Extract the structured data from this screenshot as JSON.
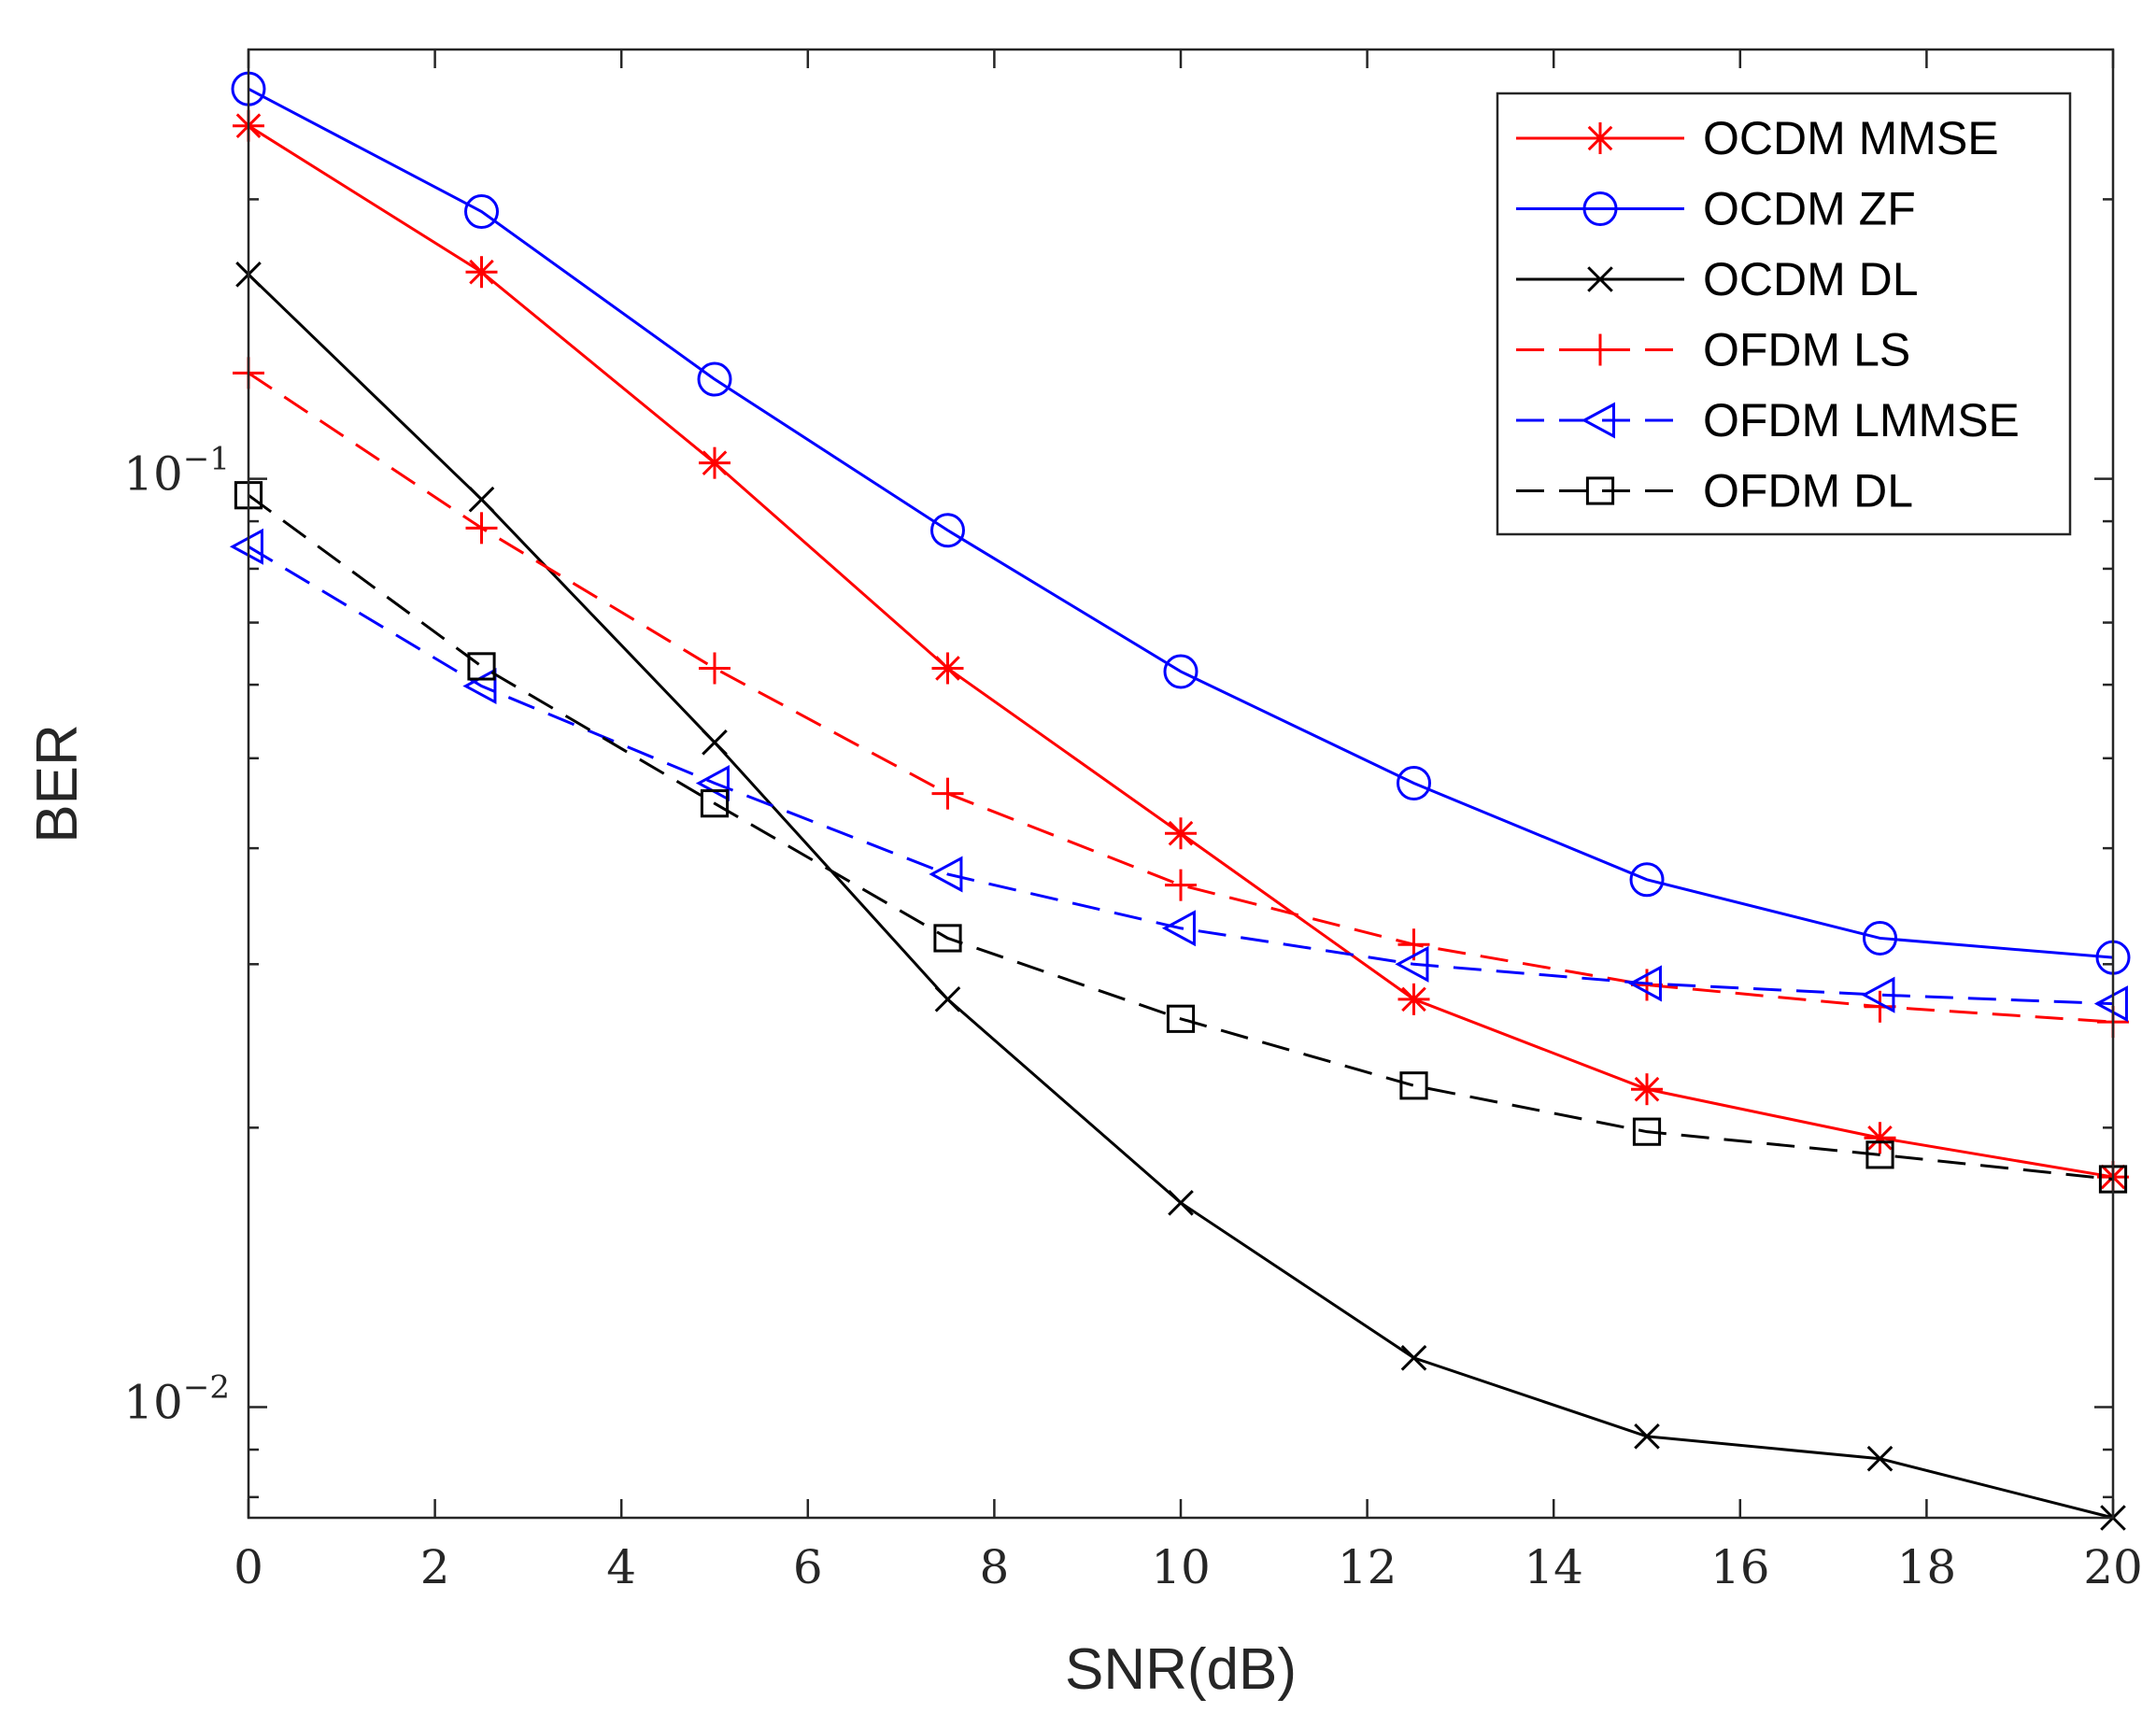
{
  "chart_data": {
    "type": "line",
    "xlabel": "SNR(dB)",
    "ylabel": "BER",
    "yscale": "log",
    "xlim": [
      0,
      20
    ],
    "ylim": [
      0.0076,
      0.29
    ],
    "xticks": [
      0,
      2,
      4,
      6,
      8,
      10,
      12,
      14,
      16,
      18,
      20
    ],
    "xtick_labels": [
      "0",
      "2",
      "4",
      "6",
      "8",
      "10",
      "12",
      "14",
      "16",
      "18",
      "20"
    ],
    "ymajor_ticks": [
      {
        "value": 0.1,
        "base": "10",
        "exp": "−1"
      },
      {
        "value": 0.01,
        "base": "10",
        "exp": "−2"
      }
    ],
    "legend_position": "top-right",
    "x": [
      0,
      2.5,
      5,
      7.5,
      10,
      12.5,
      15,
      17.5,
      20
    ],
    "series": [
      {
        "name": "OCDM MMSE",
        "color": "#ff0000",
        "dash": "solid",
        "marker": "asterisk",
        "values": [
          0.24,
          0.167,
          0.104,
          0.0625,
          0.0415,
          0.0275,
          0.022,
          0.0195,
          0.0177
        ]
      },
      {
        "name": "OCDM ZF",
        "color": "#0000ff",
        "dash": "solid",
        "marker": "circle",
        "values": [
          0.263,
          0.194,
          0.128,
          0.088,
          0.062,
          0.047,
          0.037,
          0.032,
          0.0305
        ]
      },
      {
        "name": "OCDM DL",
        "color": "#000000",
        "dash": "solid",
        "marker": "x",
        "values": [
          0.166,
          0.095,
          0.052,
          0.0275,
          0.0166,
          0.0113,
          0.0093,
          0.0088,
          0.0076
        ]
      },
      {
        "name": "OFDM LS",
        "color": "#ff0000",
        "dash": "dashed",
        "marker": "plus",
        "values": [
          0.13,
          0.0885,
          0.0625,
          0.0458,
          0.0365,
          0.0315,
          0.0285,
          0.027,
          0.026
        ]
      },
      {
        "name": "OFDM LMMSE",
        "color": "#0000ff",
        "dash": "dashed",
        "marker": "triangle-left",
        "values": [
          0.0845,
          0.0598,
          0.047,
          0.0375,
          0.0328,
          0.03,
          0.0286,
          0.0278,
          0.0272
        ]
      },
      {
        "name": "OFDM DL",
        "color": "#000000",
        "dash": "dashed",
        "marker": "square",
        "values": [
          0.096,
          0.0628,
          0.0447,
          0.032,
          0.0262,
          0.0222,
          0.0198,
          0.0187,
          0.0176
        ]
      }
    ]
  }
}
